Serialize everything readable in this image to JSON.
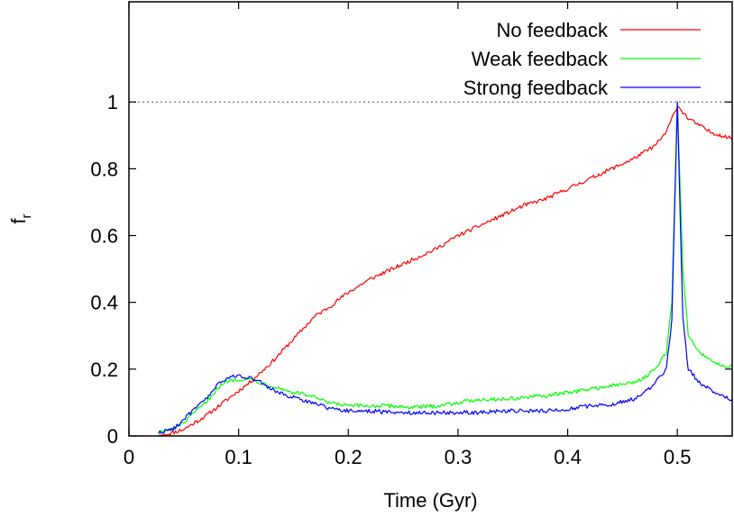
{
  "chart_data": {
    "type": "line",
    "xlabel": "Time (Gyr)",
    "ylabel": {
      "main": "f",
      "sub": "r"
    },
    "xlim": [
      0,
      0.55
    ],
    "ylim": [
      0,
      1.3
    ],
    "xticks": [
      0,
      0.1,
      0.2,
      0.3,
      0.4,
      0.5
    ],
    "xtick_labels": [
      "0",
      "0.1",
      "0.2",
      "0.3",
      "0.4",
      "0.5"
    ],
    "yticks": [
      0,
      0.2,
      0.4,
      0.6,
      0.8,
      1
    ],
    "ytick_labels": [
      "0",
      "0.2",
      "0.4",
      "0.6",
      "0.8",
      "1"
    ],
    "reference_line": {
      "y": 1,
      "style": "dotted"
    },
    "legend_position": "top-right",
    "series": [
      {
        "name": "No feedback",
        "color": "#ff0000",
        "x": [
          0.027,
          0.04,
          0.05,
          0.06,
          0.07,
          0.08,
          0.09,
          0.1,
          0.11,
          0.12,
          0.13,
          0.14,
          0.15,
          0.16,
          0.17,
          0.18,
          0.19,
          0.2,
          0.22,
          0.24,
          0.26,
          0.28,
          0.3,
          0.32,
          0.34,
          0.36,
          0.38,
          0.4,
          0.42,
          0.44,
          0.46,
          0.48,
          0.49,
          0.5,
          0.51,
          0.52,
          0.53,
          0.54,
          0.55
        ],
        "y": [
          0.0,
          0.01,
          0.02,
          0.04,
          0.06,
          0.085,
          0.11,
          0.135,
          0.16,
          0.19,
          0.22,
          0.255,
          0.29,
          0.325,
          0.36,
          0.38,
          0.405,
          0.43,
          0.47,
          0.5,
          0.53,
          0.56,
          0.6,
          0.63,
          0.66,
          0.69,
          0.71,
          0.74,
          0.77,
          0.8,
          0.83,
          0.87,
          0.91,
          0.99,
          0.95,
          0.93,
          0.91,
          0.9,
          0.89
        ]
      },
      {
        "name": "Weak feedback",
        "color": "#00ff00",
        "x": [
          0.027,
          0.04,
          0.05,
          0.06,
          0.07,
          0.08,
          0.09,
          0.1,
          0.11,
          0.12,
          0.13,
          0.14,
          0.15,
          0.16,
          0.17,
          0.18,
          0.2,
          0.22,
          0.24,
          0.26,
          0.28,
          0.3,
          0.32,
          0.34,
          0.36,
          0.38,
          0.4,
          0.42,
          0.44,
          0.46,
          0.47,
          0.48,
          0.49,
          0.495,
          0.5,
          0.505,
          0.51,
          0.52,
          0.53,
          0.54,
          0.55
        ],
        "y": [
          0.01,
          0.02,
          0.04,
          0.07,
          0.1,
          0.14,
          0.165,
          0.17,
          0.17,
          0.16,
          0.15,
          0.14,
          0.13,
          0.125,
          0.115,
          0.1,
          0.09,
          0.09,
          0.09,
          0.085,
          0.09,
          0.1,
          0.11,
          0.11,
          0.115,
          0.12,
          0.13,
          0.14,
          0.15,
          0.16,
          0.175,
          0.2,
          0.25,
          0.4,
          1.0,
          0.5,
          0.3,
          0.25,
          0.23,
          0.21,
          0.21
        ]
      },
      {
        "name": "Strong feedback",
        "color": "#0000ff",
        "x": [
          0.027,
          0.04,
          0.05,
          0.06,
          0.07,
          0.08,
          0.09,
          0.1,
          0.11,
          0.12,
          0.13,
          0.14,
          0.15,
          0.16,
          0.17,
          0.18,
          0.2,
          0.22,
          0.24,
          0.26,
          0.28,
          0.3,
          0.32,
          0.34,
          0.36,
          0.38,
          0.4,
          0.42,
          0.44,
          0.46,
          0.47,
          0.48,
          0.49,
          0.495,
          0.5,
          0.505,
          0.51,
          0.52,
          0.53,
          0.54,
          0.55
        ],
        "y": [
          0.01,
          0.02,
          0.05,
          0.08,
          0.11,
          0.15,
          0.175,
          0.18,
          0.175,
          0.16,
          0.14,
          0.125,
          0.115,
          0.105,
          0.1,
          0.085,
          0.075,
          0.075,
          0.07,
          0.07,
          0.07,
          0.07,
          0.07,
          0.075,
          0.075,
          0.075,
          0.08,
          0.09,
          0.095,
          0.11,
          0.13,
          0.16,
          0.2,
          0.35,
          1.0,
          0.35,
          0.2,
          0.16,
          0.14,
          0.12,
          0.11
        ]
      }
    ]
  }
}
